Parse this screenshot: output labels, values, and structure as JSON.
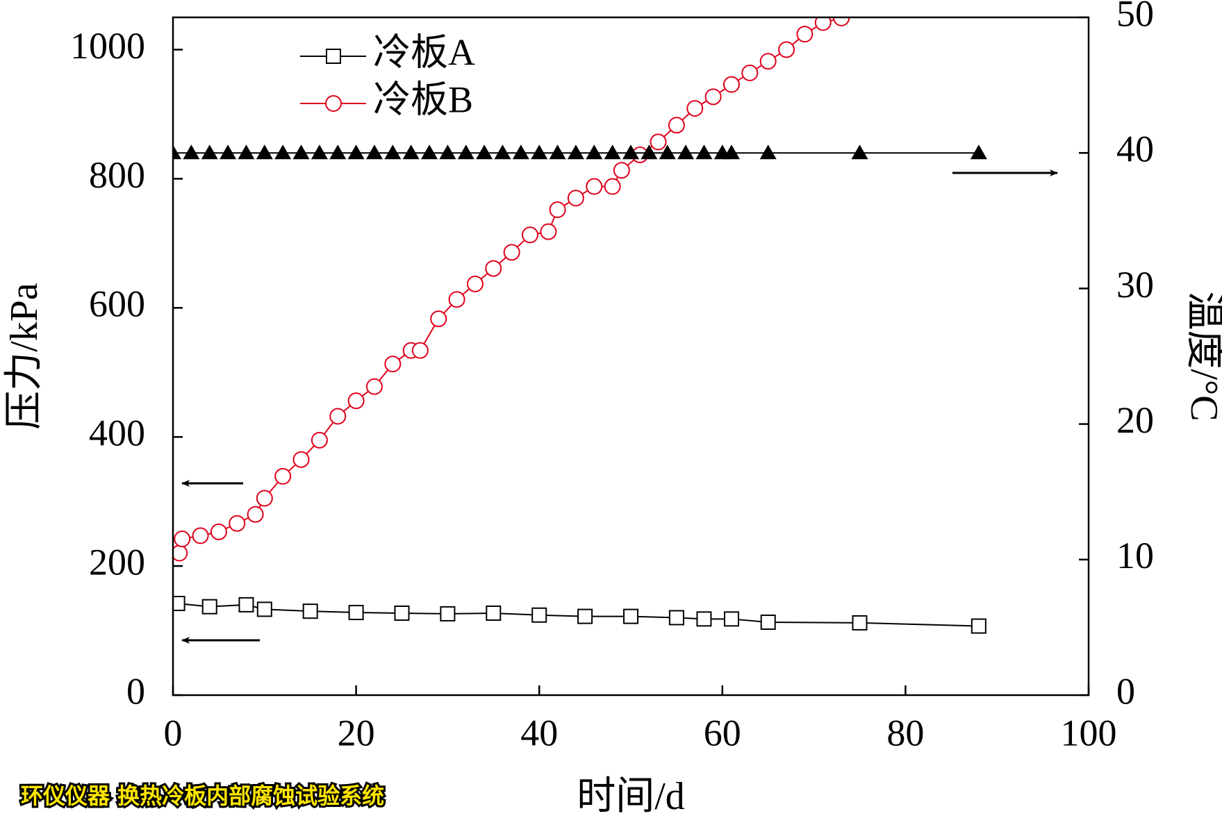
{
  "chart_data": {
    "type": "line",
    "x_label": "时间/d",
    "y_label": "压力/kPa",
    "y2_label": "温度/°C",
    "xlim": [
      0,
      100
    ],
    "xticks": [
      0,
      20,
      40,
      60,
      80,
      100
    ],
    "ylim": [
      0,
      1050
    ],
    "yticks": [
      0,
      200,
      400,
      600,
      800,
      1000
    ],
    "y2lim": [
      0,
      50
    ],
    "y2ticks": [
      0,
      10,
      20,
      30,
      40,
      50
    ],
    "legend": "top-left",
    "series": [
      {
        "name": "冷板A",
        "color": "#000000",
        "marker": "square",
        "axis": "y",
        "x": [
          0.5,
          4,
          8,
          10,
          15,
          20,
          25,
          30,
          35,
          40,
          45,
          50,
          55,
          58,
          61,
          65,
          75,
          88
        ],
        "values": [
          142,
          137,
          140,
          133,
          130,
          128,
          127,
          126,
          127,
          124,
          122,
          122,
          120,
          118,
          118,
          113,
          112,
          107
        ]
      },
      {
        "name": "冷板B",
        "color": "#e0001b",
        "marker": "circle",
        "axis": "y",
        "x": [
          0.7,
          1,
          3,
          5,
          7,
          9,
          10,
          12,
          14,
          16,
          18,
          20,
          22,
          24,
          26,
          27,
          29,
          31,
          33,
          35,
          37,
          39,
          41,
          42,
          44,
          46,
          48,
          49,
          51,
          53,
          55,
          57,
          59,
          61,
          63,
          65,
          67,
          69,
          71,
          73
        ],
        "values": [
          220,
          242,
          247,
          253,
          266,
          280,
          305,
          339,
          365,
          395,
          432,
          456,
          478,
          513,
          534,
          534,
          583,
          613,
          637,
          661,
          686,
          713,
          718,
          752,
          770,
          788,
          788,
          813,
          837,
          857,
          883,
          909,
          927,
          946,
          964,
          982,
          1000,
          1024,
          1042,
          1049
        ]
      },
      {
        "color": "#000000",
        "marker": "triangle",
        "axis": "y2",
        "x": [
          0,
          2,
          4,
          6,
          8,
          10,
          12,
          14,
          16,
          18,
          20,
          22,
          24,
          26,
          28,
          30,
          32,
          34,
          36,
          38,
          40,
          42,
          44,
          46,
          48,
          50,
          52,
          54,
          56,
          58,
          60,
          61,
          65,
          75,
          88
        ],
        "values": [
          40,
          40,
          40,
          40,
          40,
          40,
          40,
          40,
          40,
          40,
          40,
          40,
          40,
          40,
          40,
          40,
          40,
          40,
          40,
          40,
          40,
          40,
          40,
          40,
          40,
          40,
          40,
          40,
          40,
          40,
          40,
          40,
          40,
          40,
          40
        ]
      }
    ]
  },
  "watermark": "环仪仪器 换热冷板内部腐蚀试验系统"
}
